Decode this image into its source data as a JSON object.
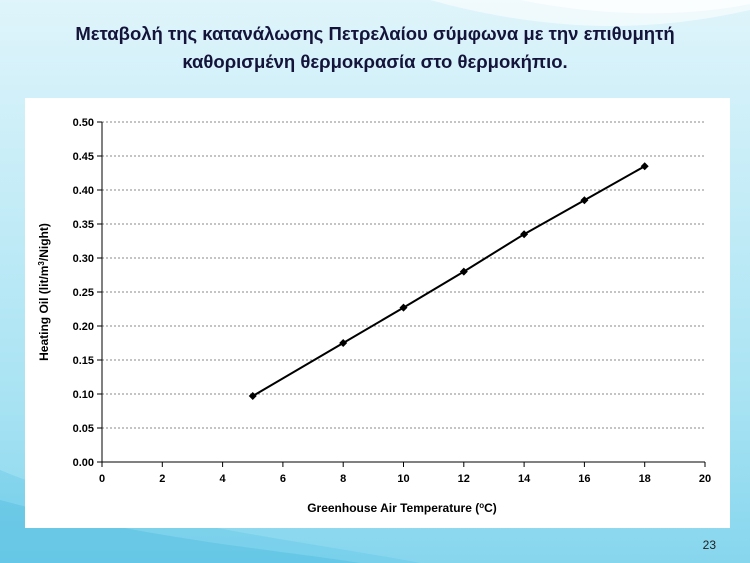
{
  "slide": {
    "title_line1": "Μεταβολή της κατανάλωσης Πετρελαίου σύμφωνα με την επιθυμητή",
    "title_line2": "καθορισμένη θερμοκρασία στο θερμοκήπιο.",
    "page_number": "23"
  },
  "colors": {
    "accent_line": "#000000",
    "grid": "#8a8a8a",
    "background_top": "#dff4fb",
    "background_bottom": "#86d6ee"
  },
  "chart_data": {
    "type": "line",
    "x": [
      5,
      8,
      10,
      12,
      14,
      16,
      18
    ],
    "series": [
      {
        "values": [
          0.097,
          0.175,
          0.227,
          0.28,
          0.335,
          0.385,
          0.435
        ],
        "marker": "diamond"
      }
    ],
    "xlabel": {
      "pre": "Greenhouse Air Temperature (",
      "sup": "o",
      "post": "C)"
    },
    "ylabel": {
      "pre": "Heating Oil (lit/m",
      "sup": "3",
      "post": "/Night)"
    },
    "xlim": [
      0,
      20
    ],
    "ylim": [
      0,
      0.5
    ],
    "x_ticks": [
      "0",
      "2",
      "4",
      "6",
      "8",
      "10",
      "12",
      "14",
      "16",
      "18",
      "20"
    ],
    "y_ticks": [
      "0.00",
      "0.05",
      "0.10",
      "0.15",
      "0.20",
      "0.25",
      "0.30",
      "0.35",
      "0.40",
      "0.45",
      "0.50"
    ],
    "grid": "horizontal-dashed",
    "legend": "none"
  }
}
